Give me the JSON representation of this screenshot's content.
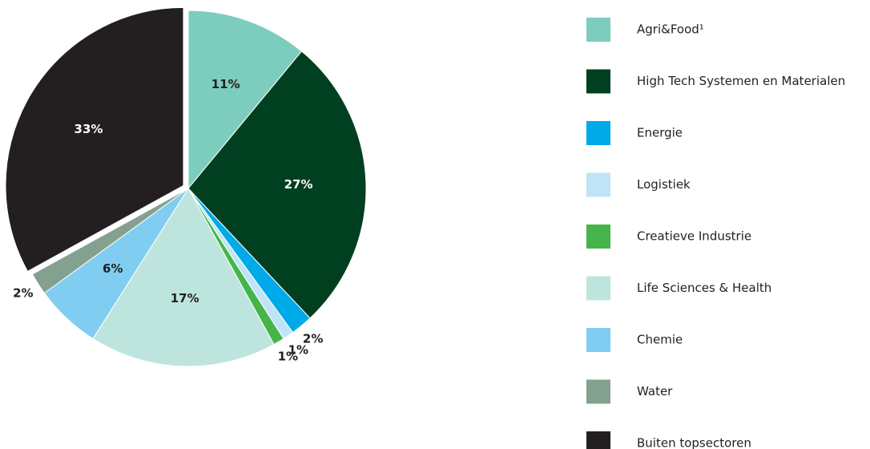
{
  "chart_data": {
    "type": "pie",
    "categories": [
      "Agri&Food¹",
      "High Tech Systemen en Materialen",
      "Energie",
      "Logistiek",
      "Creatieve Industrie",
      "Life Sciences & Health",
      "Chemie",
      "Water",
      "Buiten topsectoren"
    ],
    "values": [
      11,
      27,
      2,
      1,
      1,
      17,
      6,
      2,
      33
    ],
    "value_labels": [
      "11%",
      "27%",
      "2%",
      "1%",
      "1%",
      "17%",
      "6%",
      "2%",
      "33%"
    ],
    "colors": [
      "#7dcdbe",
      "#003f1f",
      "#00a9e8",
      "#bfe4f5",
      "#45b549",
      "#bde5de",
      "#80cdf1",
      "#84a08f",
      "#231f20"
    ],
    "legend": "right"
  }
}
